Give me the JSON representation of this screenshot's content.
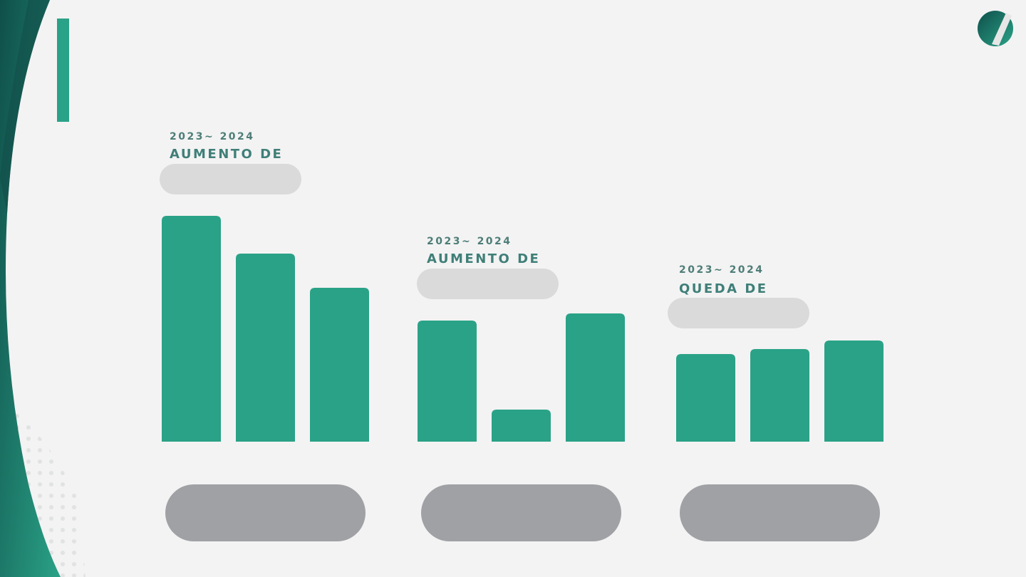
{
  "chart_data": [
    {
      "type": "bar",
      "subtitle": "2023~ 2024",
      "title": "AUMENTO DE",
      "values": [
        317,
        264,
        216
      ],
      "color": "#2aa287"
    },
    {
      "type": "bar",
      "subtitle": "2023~ 2024",
      "title": "AUMENTO DE",
      "values": [
        170,
        45,
        180
      ],
      "color": "#2aa287"
    },
    {
      "type": "bar",
      "subtitle": "2023~ 2024",
      "title": "QUEDA DE",
      "values": [
        123,
        130,
        142
      ],
      "color": "#2aa287"
    }
  ]
}
